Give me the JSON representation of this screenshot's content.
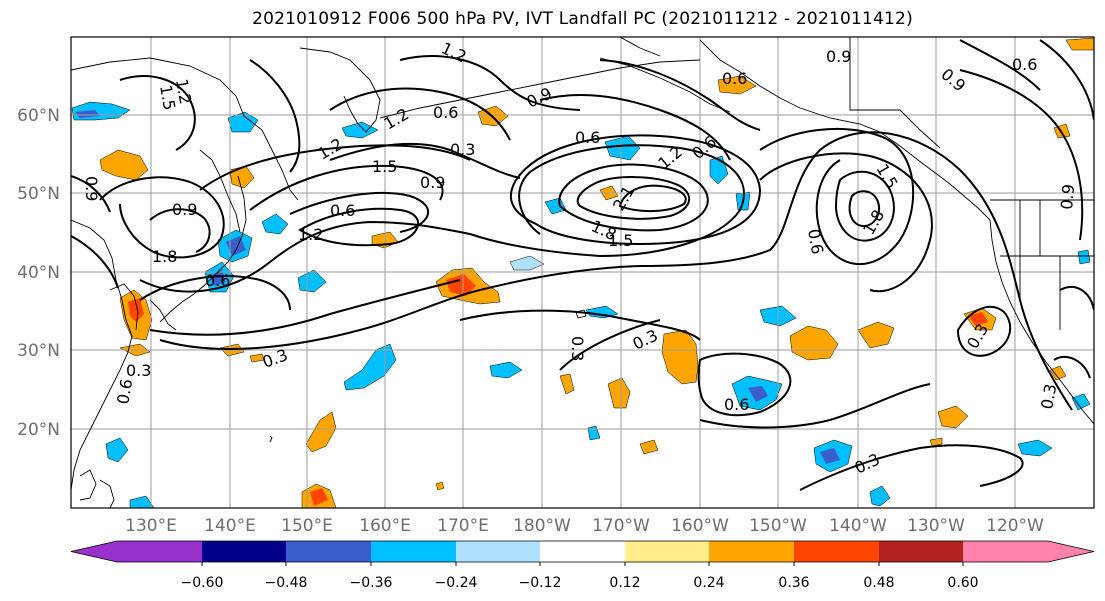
{
  "title": "2021010912 F006 500 hPa PV, IVT Landfall PC (2021011212 - 2021011412)",
  "lon_labels": [
    "130°E",
    "140°E",
    "150°E",
    "160°E",
    "170°E",
    "180°W",
    "170°W",
    "160°W",
    "150°W",
    "140°W",
    "130°W",
    "120°W"
  ],
  "lat_labels": [
    "60°N",
    "50°N",
    "40°N",
    "30°N",
    "20°N"
  ],
  "colorbar": {
    "tick_labels": [
      "−0.60",
      "−0.48",
      "−0.36",
      "−0.24",
      "−0.12",
      "0.12",
      "0.24",
      "0.36",
      "0.48",
      "0.60"
    ],
    "colors": [
      "#9932cc",
      "#00008b",
      "#3a5fcd",
      "#00bfff",
      "#b0e2ff",
      "#ffffff",
      "#ffec8b",
      "#ffa500",
      "#ff4500",
      "#b22222",
      "#ff82ab"
    ]
  },
  "contour_labels": [
    {
      "text": "1.2"
    },
    {
      "text": "0.9"
    },
    {
      "text": "0.6"
    },
    {
      "text": "0.3"
    },
    {
      "text": "1.8"
    },
    {
      "text": "1.5"
    },
    {
      "text": "1.2"
    },
    {
      "text": "0.6"
    },
    {
      "text": "0.3"
    },
    {
      "text": "0.9"
    },
    {
      "text": "1.2"
    },
    {
      "text": "0.6"
    },
    {
      "text": "0.3"
    },
    {
      "text": "1.2"
    },
    {
      "text": "0.6"
    },
    {
      "text": "1.5"
    },
    {
      "text": "1.8"
    },
    {
      "text": "2.1"
    },
    {
      "text": "1.5"
    },
    {
      "text": "0.9"
    },
    {
      "text": "0.6"
    },
    {
      "text": "0.9"
    },
    {
      "text": "1.8"
    },
    {
      "text": "1.5"
    },
    {
      "text": "0.6"
    },
    {
      "text": "0.9"
    },
    {
      "text": "0.6"
    },
    {
      "text": "0.3"
    },
    {
      "text": "0.3"
    },
    {
      "text": "0.3"
    },
    {
      "text": "0.6"
    },
    {
      "text": "0.3"
    },
    {
      "text": "0.3"
    },
    {
      "text": "0.6"
    },
    {
      "text": "0.9"
    },
    {
      "text": "0.6"
    },
    {
      "text": "1.2"
    },
    {
      "text": "0.9"
    },
    {
      "text": "1.2"
    }
  ]
}
